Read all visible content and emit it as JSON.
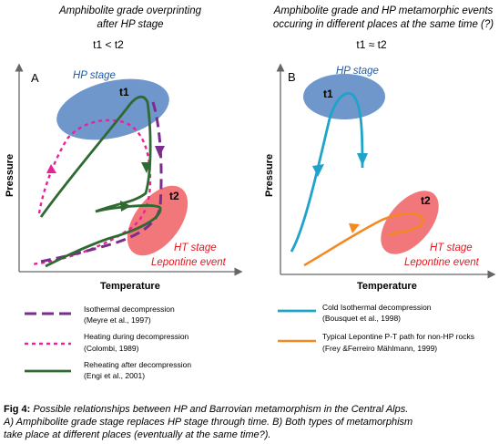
{
  "panel_a": {
    "heading_line1": "Amphibolite grade overprinting",
    "heading_line2": "after HP stage",
    "time_relation": "t1 < t2",
    "letter": "A",
    "hp_label": "HP stage",
    "t1_label": "t1",
    "t2_label": "t2",
    "ht_label_line1": "HT stage",
    "ht_label_line2": "Lepontine event",
    "y_axis": "Pressure",
    "x_axis": "Temperature",
    "legend": [
      {
        "name": "Isothermal decompression",
        "ref": "(Meyre et al., 1997)",
        "color": "#7b2d8e",
        "style": "long-dash"
      },
      {
        "name": "Heating during decompression",
        "ref": "(Colombi, 1989)",
        "color": "#e8239a",
        "style": "short-dash"
      },
      {
        "name": "Reheating after decompression",
        "ref": "(Engi et al., 2001)",
        "color": "#2e6a31",
        "style": "solid"
      }
    ]
  },
  "panel_b": {
    "heading_line1": "Amphibolite grade and HP metamorphic events",
    "heading_line2": "occuring in different places at the same time (?)",
    "time_relation": "t1  ≈ t2",
    "letter": "B",
    "hp_label": "HP stage",
    "t1_label": "t1",
    "t2_label": "t2",
    "ht_label_line1": "HT stage",
    "ht_label_line2": "Lepontine event",
    "y_axis": "Pressure",
    "x_axis": "Temperature",
    "legend": [
      {
        "name": "Cold Isothermal decompression",
        "ref": "(Bousquet et al., 1998)",
        "color": "#1fa3c8",
        "style": "solid"
      },
      {
        "name": "Typical Lepontine P-T path for non-HP rocks",
        "ref": "(Frey &Ferreiro Mählmann, 1999)",
        "color": "#f5891f",
        "style": "solid"
      }
    ]
  },
  "caption": {
    "label": "Fig 4:",
    "line1": " Possible relationships between HP and Barrovian metamorphism in the Central Alps.",
    "line2": "A) Amphibolite grade stage replaces HP stage through time. B) Both types of metamorphism",
    "line3": "take place at different places (eventually at the same time?)."
  },
  "colors": {
    "hp_field": "#6f97cc",
    "ht_field": "#f2777a",
    "hp_text": "#1e5aa8",
    "ht_text": "#e8141c",
    "axis": "#666666"
  }
}
